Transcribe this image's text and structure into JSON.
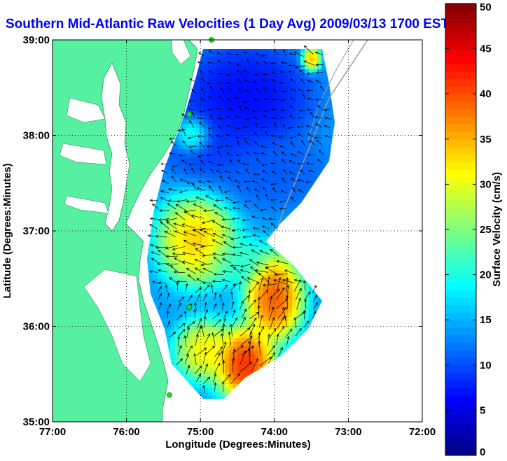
{
  "chart_data": {
    "type": "heatmap",
    "title": "Southern Mid-Atlantic Raw Velocities (1 Day Avg) 2009/03/13 1700 EST",
    "xlabel": "Longitude (Degrees:Minutes)",
    "ylabel": "Latitude (Degrees:Minutes)",
    "xlim": [
      -77,
      -72
    ],
    "ylim": [
      35,
      39
    ],
    "x_ticks": [
      {
        "value": -77,
        "label": "77:00"
      },
      {
        "value": -76,
        "label": "76:00"
      },
      {
        "value": -75,
        "label": "75:00"
      },
      {
        "value": -74,
        "label": "74:00"
      },
      {
        "value": -73,
        "label": "73:00"
      },
      {
        "value": -72,
        "label": "72:00"
      }
    ],
    "y_ticks": [
      {
        "value": 35,
        "label": "35:00"
      },
      {
        "value": 36,
        "label": "36:00"
      },
      {
        "value": 37,
        "label": "37:00"
      },
      {
        "value": 38,
        "label": "38:00"
      },
      {
        "value": 39,
        "label": "39:00"
      }
    ],
    "grid": true,
    "colorbar": {
      "label": "Surface Velocity (cm/s)",
      "min": 0,
      "max": 50,
      "ticks": [
        0,
        5,
        10,
        15,
        20,
        25,
        30,
        35,
        40,
        45,
        50
      ],
      "colormap": "jet"
    },
    "speed_regions": [
      {
        "lon": -74.4,
        "lat": 38.4,
        "rx": 0.7,
        "ry": 0.45,
        "speed": 5
      },
      {
        "lon": -74.9,
        "lat": 37.9,
        "rx": 0.5,
        "ry": 0.3,
        "speed": 8
      },
      {
        "lon": -74.0,
        "lat": 37.6,
        "rx": 0.6,
        "ry": 0.3,
        "speed": 10
      },
      {
        "lon": -75.05,
        "lat": 36.9,
        "rx": 0.4,
        "ry": 0.35,
        "speed": 38
      },
      {
        "lon": -74.5,
        "lat": 36.7,
        "rx": 0.3,
        "ry": 0.2,
        "speed": 22
      },
      {
        "lon": -74.0,
        "lat": 36.3,
        "rx": 0.3,
        "ry": 0.35,
        "speed": 45
      },
      {
        "lon": -74.4,
        "lat": 35.6,
        "rx": 0.3,
        "ry": 0.3,
        "speed": 48
      },
      {
        "lon": -74.95,
        "lat": 35.75,
        "rx": 0.3,
        "ry": 0.25,
        "speed": 35
      },
      {
        "lon": -73.5,
        "lat": 38.8,
        "rx": 0.1,
        "ry": 0.1,
        "speed": 40
      },
      {
        "lon": -75.1,
        "lat": 38.0,
        "rx": 0.2,
        "ry": 0.15,
        "speed": 30
      }
    ],
    "markers": [
      {
        "lon": -74.85,
        "lat": 39.0
      },
      {
        "lon": -75.15,
        "lat": 38.22
      },
      {
        "lon": -75.15,
        "lat": 36.2
      },
      {
        "lon": -75.42,
        "lat": 35.28
      }
    ]
  },
  "colors": {
    "title": "#0000ff",
    "land": "#55f0a0",
    "water_bg": "#ffffff",
    "marker": "#22dd22",
    "grid": "#000000",
    "arrows": "#000000"
  }
}
